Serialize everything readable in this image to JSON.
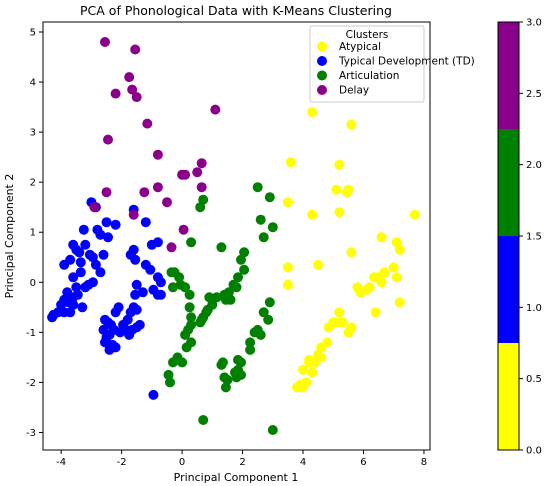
{
  "chart_data": {
    "type": "scatter",
    "title": "PCA of Phonological Data with K-Means Clustering",
    "xlabel": "Principal Component 1",
    "ylabel": "Principal Component 2",
    "xlim": [
      -4.6,
      8.2
    ],
    "ylim": [
      -3.35,
      5.2
    ],
    "xticks": [
      -4,
      -2,
      0,
      2,
      4,
      6,
      8
    ],
    "yticks": [
      -3,
      -2,
      -1,
      0,
      1,
      2,
      3,
      4,
      5
    ],
    "grid": false,
    "legend": {
      "title": "Clusters",
      "placement": "top-right"
    },
    "series": [
      {
        "name": "Atypical",
        "color": "#ffff00",
        "points": [
          [
            4.3,
            3.4
          ],
          [
            5.6,
            3.15
          ],
          [
            3.6,
            2.4
          ],
          [
            5.2,
            2.35
          ],
          [
            5.1,
            1.85
          ],
          [
            5.5,
            1.85
          ],
          [
            5.45,
            1.8
          ],
          [
            3.5,
            1.6
          ],
          [
            5.2,
            1.4
          ],
          [
            4.3,
            1.35
          ],
          [
            7.7,
            1.35
          ],
          [
            6.6,
            0.9
          ],
          [
            7.1,
            0.8
          ],
          [
            7.2,
            0.65
          ],
          [
            5.6,
            0.6
          ],
          [
            4.5,
            0.35
          ],
          [
            3.5,
            0.3
          ],
          [
            7.0,
            0.3
          ],
          [
            6.7,
            0.2
          ],
          [
            6.5,
            0.1
          ],
          [
            6.35,
            0.1
          ],
          [
            7.1,
            0.1
          ],
          [
            3.5,
            -0.05
          ],
          [
            6.6,
            0.0
          ],
          [
            6.2,
            -0.1
          ],
          [
            5.9,
            -0.2
          ],
          [
            5.8,
            -0.1
          ],
          [
            6.1,
            -0.15
          ],
          [
            7.2,
            -0.4
          ],
          [
            6.4,
            -0.6
          ],
          [
            5.2,
            -0.6
          ],
          [
            5.3,
            -0.8
          ],
          [
            5.1,
            -0.8
          ],
          [
            5.0,
            -0.8
          ],
          [
            4.85,
            -0.9
          ],
          [
            5.6,
            -0.9
          ],
          [
            5.5,
            -1.0
          ],
          [
            4.8,
            -1.2
          ],
          [
            4.6,
            -1.3
          ],
          [
            4.6,
            -1.5
          ],
          [
            4.5,
            -1.45
          ],
          [
            4.4,
            -1.6
          ],
          [
            4.2,
            -1.55
          ],
          [
            4.2,
            -1.6
          ],
          [
            4.0,
            -1.75
          ],
          [
            4.3,
            -1.8
          ],
          [
            4.1,
            -2.0
          ],
          [
            4.0,
            -2.1
          ],
          [
            3.9,
            -2.1
          ],
          [
            3.8,
            -2.1
          ],
          [
            3.9,
            -2.05
          ]
        ]
      },
      {
        "name": "Typical Development (TD)",
        "color": "#0000ff",
        "points": [
          [
            -3.0,
            1.6
          ],
          [
            -2.85,
            1.5
          ],
          [
            -3.25,
            1.05
          ],
          [
            -2.8,
            1.05
          ],
          [
            -3.6,
            0.75
          ],
          [
            -3.2,
            0.75
          ],
          [
            -3.5,
            0.65
          ],
          [
            -2.5,
            1.2
          ],
          [
            -2.2,
            1.15
          ],
          [
            -2.7,
            0.95
          ],
          [
            -2.45,
            0.9
          ],
          [
            -3.4,
            0.6
          ],
          [
            -3.05,
            0.55
          ],
          [
            -2.95,
            0.5
          ],
          [
            -2.6,
            0.55
          ],
          [
            -3.7,
            0.45
          ],
          [
            -3.35,
            0.4
          ],
          [
            -2.85,
            0.35
          ],
          [
            -3.9,
            0.35
          ],
          [
            -3.35,
            0.2
          ],
          [
            -2.7,
            0.2
          ],
          [
            -3.6,
            0.1
          ],
          [
            -3.1,
            -0.05
          ],
          [
            -2.95,
            0.0
          ],
          [
            -3.5,
            -0.1
          ],
          [
            -3.2,
            -0.1
          ],
          [
            -3.8,
            -0.2
          ],
          [
            -3.45,
            -0.25
          ],
          [
            -3.6,
            -0.3
          ],
          [
            -3.9,
            -0.35
          ],
          [
            -3.75,
            -0.4
          ],
          [
            -3.6,
            -0.45
          ],
          [
            -4.0,
            -0.45
          ],
          [
            -3.3,
            -0.5
          ],
          [
            -3.9,
            -0.6
          ],
          [
            -4.1,
            -0.6
          ],
          [
            -3.7,
            -0.6
          ],
          [
            -4.3,
            -0.7
          ],
          [
            -4.25,
            -0.65
          ],
          [
            -1.6,
            1.45
          ],
          [
            -1.2,
            1.2
          ],
          [
            -1.6,
            0.65
          ],
          [
            -1.7,
            0.55
          ],
          [
            -1.55,
            0.45
          ],
          [
            -1.0,
            0.75
          ],
          [
            -0.8,
            0.8
          ],
          [
            -1.2,
            0.35
          ],
          [
            -1.05,
            0.25
          ],
          [
            -0.8,
            0.1
          ],
          [
            -0.7,
            0.0
          ],
          [
            -1.5,
            -0.05
          ],
          [
            -1.3,
            -0.2
          ],
          [
            -1.55,
            -0.25
          ],
          [
            -0.95,
            -0.15
          ],
          [
            -0.8,
            -0.25
          ],
          [
            -0.7,
            -0.25
          ],
          [
            -1.6,
            -0.5
          ],
          [
            -1.5,
            -0.55
          ],
          [
            -1.7,
            -0.6
          ],
          [
            -1.8,
            -0.75
          ],
          [
            -2.1,
            -0.5
          ],
          [
            -2.2,
            -0.6
          ],
          [
            -1.95,
            -0.85
          ],
          [
            -1.85,
            -0.95
          ],
          [
            -1.4,
            -0.85
          ],
          [
            -1.5,
            -0.9
          ],
          [
            -1.65,
            -0.95
          ],
          [
            -1.75,
            -1.05
          ],
          [
            -2.25,
            -0.95
          ],
          [
            -2.05,
            -1.0
          ],
          [
            -2.55,
            -0.75
          ],
          [
            -2.45,
            -0.8
          ],
          [
            -2.35,
            -0.85
          ],
          [
            -2.6,
            -0.95
          ],
          [
            -2.4,
            -1.05
          ],
          [
            -2.5,
            -1.1
          ],
          [
            -2.55,
            -1.2
          ],
          [
            -2.3,
            -1.25
          ],
          [
            -2.4,
            -1.35
          ],
          [
            -2.2,
            -1.3
          ],
          [
            -0.95,
            -2.25
          ]
        ]
      },
      {
        "name": "Articulation",
        "color": "#008000",
        "points": [
          [
            2.5,
            1.9
          ],
          [
            2.9,
            1.7
          ],
          [
            2.6,
            1.25
          ],
          [
            0.7,
            1.65
          ],
          [
            0.6,
            1.5
          ],
          [
            0.3,
            0.8
          ],
          [
            1.3,
            0.7
          ],
          [
            2.7,
            0.9
          ],
          [
            3.0,
            1.1
          ],
          [
            2.05,
            0.6
          ],
          [
            1.95,
            0.45
          ],
          [
            2.05,
            0.25
          ],
          [
            1.85,
            0.1
          ],
          [
            1.7,
            -0.05
          ],
          [
            1.8,
            -0.1
          ],
          [
            1.55,
            -0.2
          ],
          [
            1.4,
            -0.25
          ],
          [
            1.6,
            -0.35
          ],
          [
            1.45,
            -0.35
          ],
          [
            1.15,
            -0.3
          ],
          [
            1.0,
            -0.35
          ],
          [
            0.9,
            -0.3
          ],
          [
            1.0,
            -0.45
          ],
          [
            0.85,
            -0.55
          ],
          [
            0.8,
            -0.6
          ],
          [
            0.7,
            -0.7
          ],
          [
            0.6,
            -0.8
          ],
          [
            0.65,
            -0.75
          ],
          [
            0.25,
            -0.25
          ],
          [
            0.1,
            -0.1
          ],
          [
            -0.1,
            0.1
          ],
          [
            -0.25,
            0.2
          ],
          [
            -0.35,
            0.2
          ],
          [
            -0.3,
            -0.1
          ],
          [
            -0.05,
            -0.05
          ],
          [
            0.25,
            -0.5
          ],
          [
            0.3,
            -0.7
          ],
          [
            0.3,
            -0.85
          ],
          [
            0.2,
            -0.95
          ],
          [
            0.1,
            -1.05
          ],
          [
            0.3,
            -1.2
          ],
          [
            0.15,
            -1.3
          ],
          [
            -0.15,
            -1.5
          ],
          [
            -0.3,
            -1.6
          ],
          [
            0.0,
            -1.6
          ],
          [
            -0.45,
            -1.85
          ],
          [
            -0.4,
            -2.0
          ],
          [
            2.9,
            -0.4
          ],
          [
            2.7,
            -0.6
          ],
          [
            2.85,
            -0.75
          ],
          [
            2.5,
            -0.95
          ],
          [
            2.4,
            -1.0
          ],
          [
            2.6,
            -1.05
          ],
          [
            2.25,
            -1.2
          ],
          [
            2.25,
            -1.35
          ],
          [
            1.85,
            -1.55
          ],
          [
            1.35,
            -1.6
          ],
          [
            1.3,
            -1.65
          ],
          [
            1.95,
            -1.6
          ],
          [
            1.85,
            -1.75
          ],
          [
            1.75,
            -1.8
          ],
          [
            1.95,
            -1.85
          ],
          [
            1.5,
            -1.95
          ],
          [
            1.45,
            -2.1
          ],
          [
            1.4,
            -1.9
          ],
          [
            1.8,
            -1.9
          ],
          [
            0.7,
            -2.75
          ],
          [
            3.0,
            -2.95
          ]
        ]
      },
      {
        "name": "Delay",
        "color": "#8b008b",
        "points": [
          [
            -2.55,
            4.8
          ],
          [
            -1.55,
            4.65
          ],
          [
            -1.75,
            4.1
          ],
          [
            -1.65,
            3.85
          ],
          [
            -2.2,
            3.77
          ],
          [
            -1.5,
            3.7
          ],
          [
            -1.15,
            3.17
          ],
          [
            1.1,
            3.45
          ],
          [
            -2.45,
            2.85
          ],
          [
            -0.8,
            2.55
          ],
          [
            0.5,
            2.2
          ],
          [
            0.1,
            2.15
          ],
          [
            0.0,
            2.15
          ],
          [
            0.65,
            2.38
          ],
          [
            -1.25,
            1.8
          ],
          [
            -0.8,
            1.9
          ],
          [
            -2.5,
            1.8
          ],
          [
            0.65,
            1.9
          ],
          [
            -0.5,
            1.6
          ],
          [
            -2.9,
            1.5
          ],
          [
            -1.6,
            1.35
          ],
          [
            0.05,
            1.05
          ],
          [
            -0.35,
            0.7
          ]
        ]
      }
    ],
    "colorbar": {
      "ticks": [
        "0.0",
        "0.5",
        "1.0",
        "1.5",
        "2.0",
        "2.5",
        "3.0"
      ],
      "range": [
        0,
        3
      ],
      "bands": [
        {
          "from": 0.0,
          "to": 0.75,
          "color": "#ffff00"
        },
        {
          "from": 0.75,
          "to": 1.5,
          "color": "#0000ff"
        },
        {
          "from": 1.5,
          "to": 2.25,
          "color": "#008000"
        },
        {
          "from": 2.25,
          "to": 3.0,
          "color": "#8b008b"
        }
      ]
    }
  }
}
